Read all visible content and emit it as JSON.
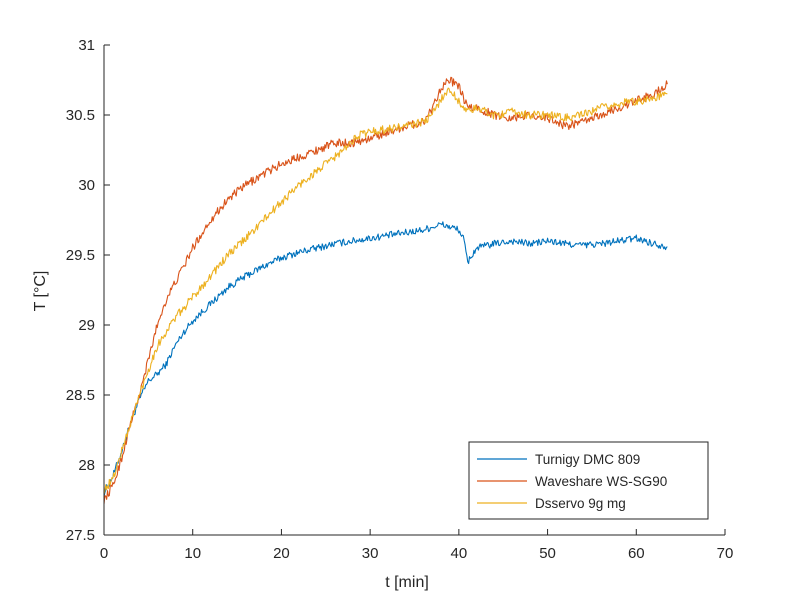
{
  "chart_data": {
    "type": "line",
    "title": "",
    "xlabel": "t [min]",
    "ylabel": "T [°C]",
    "xlim": [
      0,
      70
    ],
    "ylim": [
      27.5,
      31
    ],
    "xticks": [
      0,
      10,
      20,
      30,
      40,
      50,
      60,
      70
    ],
    "xtick_labels": [
      "0",
      "10",
      "20",
      "30",
      "40",
      "50",
      "60",
      "70"
    ],
    "yticks": [
      27.5,
      28,
      28.5,
      29,
      29.5,
      30,
      30.5,
      31
    ],
    "ytick_labels": [
      "27.5",
      "28",
      "28.5",
      "29",
      "29.5",
      "30",
      "30.5",
      "31"
    ],
    "grid": false,
    "legend_position": "bottom-right",
    "series": [
      {
        "name": "Turnigy DMC 809",
        "color": "#0072bd",
        "noise": 0.025,
        "x": [
          0,
          1,
          2,
          3,
          4,
          5,
          6,
          7,
          8,
          9,
          10,
          12,
          14,
          16,
          18,
          20,
          22,
          24,
          26,
          28,
          30,
          32,
          34,
          36,
          37,
          38,
          39,
          40,
          40.5,
          41,
          42,
          44,
          46,
          48,
          50,
          52,
          54,
          56,
          58,
          60,
          62,
          63.5
        ],
        "values": [
          27.8,
          27.92,
          28.1,
          28.3,
          28.47,
          28.6,
          28.65,
          28.72,
          28.85,
          28.95,
          29.03,
          29.15,
          29.27,
          29.35,
          29.42,
          29.48,
          29.52,
          29.55,
          29.58,
          29.6,
          29.62,
          29.64,
          29.66,
          29.68,
          29.7,
          29.72,
          29.7,
          29.68,
          29.62,
          29.45,
          29.55,
          29.58,
          29.6,
          29.58,
          29.6,
          29.58,
          29.57,
          29.58,
          29.6,
          29.62,
          29.58,
          29.56
        ]
      },
      {
        "name": "Waveshare WS-SG90",
        "color": "#d95319",
        "noise": 0.03,
        "x": [
          0,
          1,
          2,
          3,
          4,
          5,
          6,
          7,
          8,
          9,
          10,
          12,
          14,
          16,
          18,
          20,
          22,
          24,
          26,
          28,
          30,
          32,
          34,
          36,
          37,
          38,
          39,
          40,
          41,
          42,
          44,
          46,
          48,
          50,
          52,
          54,
          56,
          58,
          60,
          62,
          63.5
        ],
        "values": [
          27.75,
          27.85,
          28.05,
          28.3,
          28.5,
          28.75,
          29.0,
          29.18,
          29.3,
          29.42,
          29.55,
          29.75,
          29.9,
          30.0,
          30.08,
          30.15,
          30.2,
          30.25,
          30.3,
          30.3,
          30.33,
          30.38,
          30.42,
          30.45,
          30.55,
          30.7,
          30.75,
          30.7,
          30.55,
          30.55,
          30.5,
          30.48,
          30.5,
          30.48,
          30.42,
          30.45,
          30.5,
          30.55,
          30.6,
          30.65,
          30.72
        ]
      },
      {
        "name": "Dsservo 9g mg",
        "color": "#edb120",
        "noise": 0.03,
        "x": [
          0,
          1,
          2,
          3,
          4,
          5,
          6,
          7,
          8,
          9,
          10,
          12,
          14,
          16,
          18,
          20,
          22,
          24,
          26,
          28,
          28.2,
          30,
          32,
          34,
          36,
          37,
          38,
          39,
          40,
          41,
          42,
          44,
          46,
          48,
          50,
          52,
          54,
          56,
          58,
          60,
          62,
          63.5
        ],
        "values": [
          27.82,
          27.9,
          28.1,
          28.3,
          28.5,
          28.68,
          28.85,
          28.95,
          29.05,
          29.12,
          29.2,
          29.35,
          29.5,
          29.62,
          29.75,
          29.88,
          30.0,
          30.1,
          30.2,
          30.3,
          30.35,
          30.38,
          30.4,
          30.42,
          30.45,
          30.5,
          30.62,
          30.68,
          30.6,
          30.52,
          30.55,
          30.5,
          30.52,
          30.5,
          30.5,
          30.48,
          30.5,
          30.55,
          30.58,
          30.6,
          30.62,
          30.65
        ]
      }
    ]
  }
}
